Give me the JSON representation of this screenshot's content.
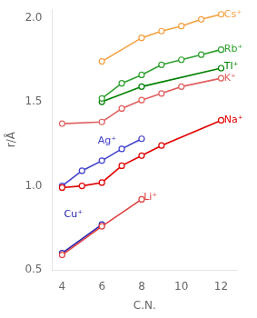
{
  "chart_data": {
    "type": "line",
    "xlabel": "C.N.",
    "ylabel": "r/Å",
    "xlim": [
      3.5,
      12.8
    ],
    "ylim": [
      0.5,
      2.05
    ],
    "xticks": [
      4,
      6,
      8,
      10,
      12
    ],
    "yticks": [
      0.5,
      {
        "value": 1.0,
        "label": "1.0"
      },
      1.5,
      {
        "value": 2.0,
        "label": "2.0"
      }
    ],
    "grid": false,
    "marker": "circle",
    "line_style": "solid",
    "series": [
      {
        "color": "#F4A040",
        "x": [
          6,
          8,
          9,
          10,
          11,
          12
        ],
        "values": [
          1.74,
          1.88,
          1.92,
          1.95,
          1.99,
          2.02
        ]
      },
      {
        "color": "#30A030",
        "x": [
          6,
          7,
          8,
          9,
          10,
          11,
          12
        ],
        "values": [
          1.52,
          1.61,
          1.66,
          1.72,
          1.75,
          1.78,
          1.81
        ]
      },
      {
        "color": "#008000",
        "x": [
          6,
          8,
          12
        ],
        "values": [
          1.5,
          1.59,
          1.7
        ]
      },
      {
        "color": "#E06060",
        "x": [
          4,
          6,
          7,
          8,
          9,
          10,
          12
        ],
        "values": [
          1.37,
          1.38,
          1.46,
          1.51,
          1.55,
          1.59,
          1.64
        ]
      },
      {
        "color": "#E00000",
        "x": [
          4,
          5,
          6,
          7,
          8,
          9,
          12
        ],
        "values": [
          0.99,
          1.0,
          1.02,
          1.12,
          1.18,
          1.24,
          1.39
        ]
      },
      {
        "color": "#4040CC",
        "x": [
          4,
          5,
          6,
          7,
          8
        ],
        "values": [
          1.0,
          1.09,
          1.15,
          1.22,
          1.28
        ]
      },
      {
        "color": "#E04040",
        "x": [
          4,
          6,
          8
        ],
        "values": [
          0.59,
          0.76,
          0.92
        ]
      },
      {
        "color": "#2020AA",
        "x": [
          4,
          6
        ],
        "values": [
          0.6,
          0.77
        ]
      }
    ],
    "annotations": [
      {
        "text": "Cs⁺",
        "x": 12.15,
        "y": 2.02,
        "color": "#F4A040"
      },
      {
        "text": "Rb⁺",
        "x": 12.15,
        "y": 1.81,
        "color": "#30A030"
      },
      {
        "text": "Tl⁺",
        "x": 12.15,
        "y": 1.71,
        "color": "#008000"
      },
      {
        "text": "K⁺",
        "x": 12.15,
        "y": 1.64,
        "color": "#E06060"
      },
      {
        "text": "Na⁺",
        "x": 12.15,
        "y": 1.39,
        "color": "#E00000"
      },
      {
        "text": "Ag⁺",
        "x": 5.8,
        "y": 1.265,
        "color": "#4040CC"
      },
      {
        "text": "Li⁺",
        "x": 8.1,
        "y": 0.93,
        "color": "#E04040"
      },
      {
        "text": "Cu⁺",
        "x": 4.1,
        "y": 0.83,
        "color": "#2020AA"
      }
    ]
  }
}
